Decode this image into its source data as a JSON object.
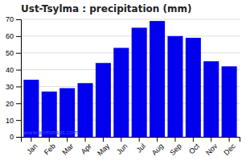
{
  "chart_data": {
    "type": "bar",
    "title": "Ust-Tsylma : precipitation (mm)",
    "categories": [
      "Jan",
      "Feb",
      "Mar",
      "Apr",
      "May",
      "Jun",
      "Jul",
      "Aug",
      "Sep",
      "Oct",
      "Nov",
      "Dec"
    ],
    "values": [
      34,
      27,
      29,
      32,
      44,
      53,
      65,
      69,
      60,
      59,
      45,
      42
    ],
    "color": "#0000ee",
    "ylim": [
      0,
      70
    ],
    "yticks": [
      0,
      10,
      20,
      30,
      40,
      50,
      60,
      70
    ],
    "grid": true,
    "annotations": [
      "www.allmetsat.com"
    ]
  }
}
